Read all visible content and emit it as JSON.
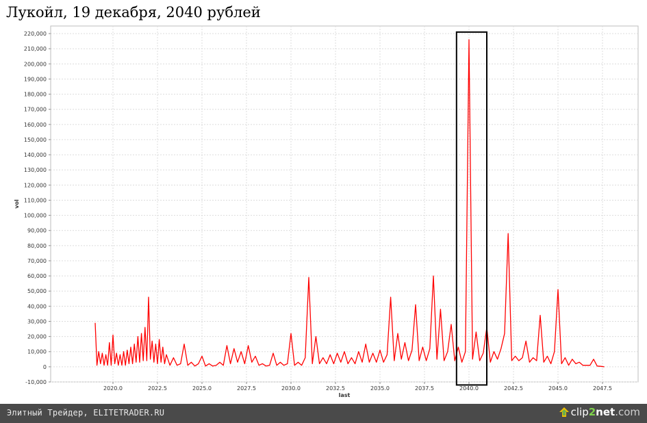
{
  "chart_data": {
    "type": "line",
    "title": "Лукойл, 19 декабря, 2040 рублей",
    "xlabel": "last",
    "ylabel": "vol",
    "xlim": [
      2016.5,
      2049.5
    ],
    "ylim": [
      -10000,
      225000
    ],
    "x_ticks": [
      "2020.0",
      "2022.5",
      "2025.0",
      "2027.5",
      "2030.0",
      "2032.5",
      "2035.0",
      "2037.5",
      "2040.0",
      "2042.5",
      "2045.0",
      "2047.5"
    ],
    "y_ticks": [
      "-10,000",
      "0",
      "10,000",
      "20,000",
      "30,000",
      "40,000",
      "50,000",
      "60,000",
      "70,000",
      "80,000",
      "90,000",
      "100,000",
      "110,000",
      "120,000",
      "130,000",
      "140,000",
      "150,000",
      "160,000",
      "170,000",
      "180,000",
      "190,000",
      "200,000",
      "210,000",
      "220,000"
    ],
    "grid": true,
    "series": [
      {
        "color": "#ff0000",
        "x": [
          2019.0,
          2019.1,
          2019.2,
          2019.3,
          2019.4,
          2019.5,
          2019.6,
          2019.7,
          2019.8,
          2019.9,
          2020.0,
          2020.1,
          2020.2,
          2020.3,
          2020.4,
          2020.5,
          2020.6,
          2020.7,
          2020.8,
          2020.9,
          2021.0,
          2021.1,
          2021.2,
          2021.3,
          2021.4,
          2021.5,
          2021.6,
          2021.7,
          2021.8,
          2021.9,
          2022.0,
          2022.1,
          2022.2,
          2022.3,
          2022.4,
          2022.5,
          2022.6,
          2022.7,
          2022.8,
          2022.9,
          2023.0,
          2023.2,
          2023.4,
          2023.6,
          2023.8,
          2024.0,
          2024.2,
          2024.4,
          2024.6,
          2024.8,
          2025.0,
          2025.2,
          2025.4,
          2025.6,
          2025.8,
          2026.0,
          2026.2,
          2026.4,
          2026.6,
          2026.8,
          2027.0,
          2027.2,
          2027.4,
          2027.6,
          2027.8,
          2028.0,
          2028.2,
          2028.4,
          2028.6,
          2028.8,
          2029.0,
          2029.2,
          2029.4,
          2029.6,
          2029.8,
          2030.0,
          2030.2,
          2030.4,
          2030.6,
          2030.8,
          2031.0,
          2031.2,
          2031.4,
          2031.6,
          2031.8,
          2032.0,
          2032.2,
          2032.4,
          2032.6,
          2032.8,
          2033.0,
          2033.2,
          2033.4,
          2033.6,
          2033.8,
          2034.0,
          2034.2,
          2034.4,
          2034.6,
          2034.8,
          2035.0,
          2035.2,
          2035.4,
          2035.6,
          2035.8,
          2036.0,
          2036.2,
          2036.4,
          2036.6,
          2036.8,
          2037.0,
          2037.2,
          2037.4,
          2037.6,
          2037.8,
          2038.0,
          2038.2,
          2038.4,
          2038.6,
          2038.8,
          2039.0,
          2039.2,
          2039.4,
          2039.6,
          2039.8,
          2040.0,
          2040.2,
          2040.4,
          2040.6,
          2040.8,
          2041.0,
          2041.2,
          2041.4,
          2041.6,
          2041.8,
          2042.0,
          2042.2,
          2042.4,
          2042.6,
          2042.8,
          2043.0,
          2043.2,
          2043.4,
          2043.6,
          2043.8,
          2044.0,
          2044.2,
          2044.4,
          2044.6,
          2044.8,
          2045.0,
          2045.2,
          2045.4,
          2045.6,
          2045.8,
          2046.0,
          2046.2,
          2046.4,
          2046.6,
          2046.8,
          2047.0,
          2047.2,
          2047.4,
          2047.6
        ],
        "values": [
          29000,
          1000,
          10000,
          2000,
          9000,
          1000,
          8000,
          1000,
          16000,
          1000,
          21000,
          2000,
          9000,
          1000,
          8000,
          1000,
          10000,
          1000,
          11000,
          2000,
          13000,
          2000,
          15000,
          3000,
          20000,
          3000,
          22000,
          4000,
          26000,
          4000,
          46000,
          5000,
          17000,
          3000,
          15000,
          2000,
          18000,
          3000,
          13000,
          2000,
          8000,
          1000,
          6000,
          1000,
          2000,
          15000,
          1000,
          3000,
          500,
          2000,
          7000,
          500,
          2000,
          500,
          1000,
          3000,
          1000,
          14000,
          2000,
          12000,
          3000,
          10000,
          2000,
          14000,
          3000,
          7000,
          1000,
          2000,
          500,
          1000,
          9000,
          1000,
          3000,
          1000,
          2000,
          22000,
          1000,
          3000,
          1000,
          6000,
          59000,
          2000,
          20000,
          2000,
          6000,
          2000,
          8000,
          2000,
          9000,
          3000,
          10000,
          2000,
          6000,
          2000,
          10000,
          3000,
          15000,
          3000,
          9000,
          3000,
          11000,
          3000,
          8000,
          46000,
          4000,
          22000,
          5000,
          16000,
          4000,
          11000,
          41000,
          4000,
          13000,
          4000,
          12000,
          60000,
          5000,
          38000,
          4000,
          10000,
          28000,
          4000,
          13000,
          3000,
          10000,
          216000,
          5000,
          23000,
          4000,
          9000,
          26000,
          3000,
          10000,
          5000,
          12000,
          22000,
          88000,
          4000,
          7000,
          4000,
          6000,
          17000,
          3000,
          6000,
          4000,
          34000,
          3000,
          7000,
          2000,
          10000,
          51000,
          2000,
          6000,
          1000,
          5000,
          2000,
          3000,
          1000,
          1000,
          1000,
          5000,
          500,
          300,
          0
        ]
      }
    ],
    "annotations": [
      {
        "type": "box",
        "x_from": 2039.3,
        "x_to": 2041.0,
        "y_from": -12000,
        "y_to": 221000,
        "color": "#000000"
      }
    ]
  },
  "footer": {
    "text": "Элитный Трейдер, ELITETRADER.RU",
    "brand_a": "clip",
    "brand_b": "2",
    "brand_c": "net",
    "brand_d": ".com"
  }
}
